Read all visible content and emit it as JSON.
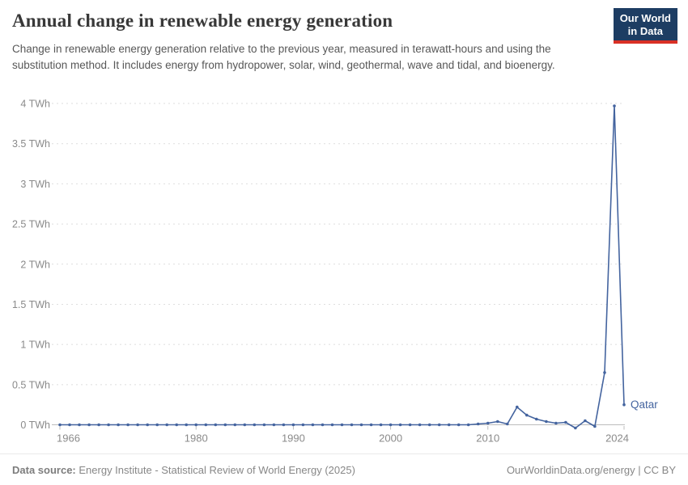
{
  "header": {
    "title": "Annual change in renewable energy generation",
    "subtitle": "Change in renewable energy generation relative to the previous year, measured in terawatt-hours and using the substitution method. It includes energy from hydropower, solar, wind, geothermal, wave and tidal, and bioenergy."
  },
  "logo": {
    "line1": "Our World",
    "line2": "in Data",
    "bg_color": "#1d3d63",
    "accent_color": "#d93025"
  },
  "chart_data": {
    "type": "line",
    "title": "Annual change in renewable energy generation",
    "entity_label": "Qatar",
    "unit": "TWh",
    "xlabel": "",
    "ylabel": "TWh",
    "xlim": [
      1966,
      2024
    ],
    "ylim": [
      -0.1,
      4
    ],
    "grid": "horizontal-dashed",
    "legend_position": "end-of-line",
    "line_color": "#44649f",
    "axis_text_color": "#8a8a8a",
    "gridline_color": "#dedede",
    "axis_line_color": "#bcbcbc",
    "x": [
      1966,
      1967,
      1968,
      1969,
      1970,
      1971,
      1972,
      1973,
      1974,
      1975,
      1976,
      1977,
      1978,
      1979,
      1980,
      1981,
      1982,
      1983,
      1984,
      1985,
      1986,
      1987,
      1988,
      1989,
      1990,
      1991,
      1992,
      1993,
      1994,
      1995,
      1996,
      1997,
      1998,
      1999,
      2000,
      2001,
      2002,
      2003,
      2004,
      2005,
      2006,
      2007,
      2008,
      2009,
      2010,
      2011,
      2012,
      2013,
      2014,
      2015,
      2016,
      2017,
      2018,
      2019,
      2020,
      2021,
      2022,
      2023,
      2024
    ],
    "series": [
      {
        "name": "Qatar",
        "values": [
          0,
          0,
          0,
          0,
          0,
          0,
          0,
          0,
          0,
          0,
          0,
          0,
          0,
          0,
          0,
          0,
          0,
          0,
          0,
          0,
          0,
          0,
          0,
          0,
          0,
          0,
          0,
          0,
          0,
          0,
          0,
          0,
          0,
          0,
          0,
          0,
          0,
          0,
          0,
          0,
          0,
          0,
          0,
          0.01,
          0.02,
          0.04,
          0.01,
          0.22,
          0.12,
          0.07,
          0.04,
          0.02,
          0.03,
          -0.04,
          0.05,
          -0.02,
          0.65,
          3.97,
          0.25
        ]
      }
    ],
    "x_ticks": [
      1966,
      1980,
      1990,
      2000,
      2010,
      2024
    ],
    "y_ticks": [
      {
        "value": 0,
        "label": "0 TWh"
      },
      {
        "value": 0.5,
        "label": "0.5 TWh"
      },
      {
        "value": 1,
        "label": "1 TWh"
      },
      {
        "value": 1.5,
        "label": "1.5 TWh"
      },
      {
        "value": 2,
        "label": "2 TWh"
      },
      {
        "value": 2.5,
        "label": "2.5 TWh"
      },
      {
        "value": 3,
        "label": "3 TWh"
      },
      {
        "value": 3.5,
        "label": "3.5 TWh"
      },
      {
        "value": 4,
        "label": "4 TWh"
      }
    ]
  },
  "footer": {
    "source_label": "Data source:",
    "source_text": "Energy Institute - Statistical Review of World Energy (2025)",
    "credit": "OurWorldinData.org/energy | CC BY"
  }
}
